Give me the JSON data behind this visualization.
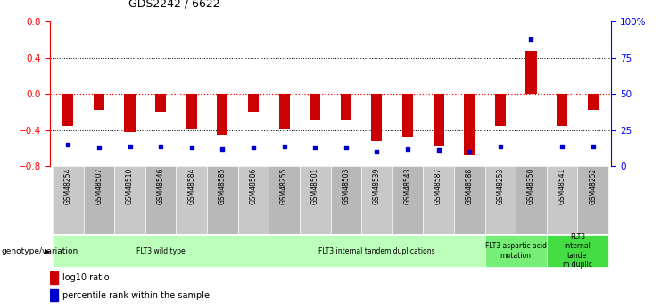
{
  "title": "GDS2242 / 6622",
  "samples": [
    "GSM48254",
    "GSM48507",
    "GSM48510",
    "GSM48546",
    "GSM48584",
    "GSM48585",
    "GSM48586",
    "GSM48255",
    "GSM48501",
    "GSM48503",
    "GSM48539",
    "GSM48543",
    "GSM48587",
    "GSM48588",
    "GSM48253",
    "GSM48350",
    "GSM48541",
    "GSM48252"
  ],
  "log10_ratio": [
    -0.35,
    -0.18,
    -0.42,
    -0.2,
    -0.38,
    -0.45,
    -0.2,
    -0.38,
    -0.28,
    -0.28,
    -0.52,
    -0.47,
    -0.58,
    -0.68,
    -0.35,
    0.48,
    -0.35,
    -0.18
  ],
  "percentile_rank": [
    15,
    13,
    14,
    14,
    13,
    12,
    13,
    14,
    13,
    13,
    10,
    12,
    11,
    10,
    14,
    88,
    14,
    14
  ],
  "groups": [
    {
      "label": "FLT3 wild type",
      "start": 0,
      "end": 7,
      "color": "#bbffbb"
    },
    {
      "label": "FLT3 internal tandem duplications",
      "start": 7,
      "end": 14,
      "color": "#bbffbb"
    },
    {
      "label": "FLT3 aspartic acid\nmutation",
      "start": 14,
      "end": 16,
      "color": "#77ee77"
    },
    {
      "label": "FLT3\ninternal\ntande\nm duplic",
      "start": 16,
      "end": 18,
      "color": "#44dd44"
    }
  ],
  "ylim_left": [
    -0.8,
    0.8
  ],
  "ylim_right": [
    0,
    100
  ],
  "yticks_left": [
    -0.8,
    -0.4,
    0,
    0.4,
    0.8
  ],
  "yticks_right": [
    0,
    25,
    50,
    75,
    100
  ],
  "bar_color": "#cc0000",
  "dot_color": "#0000cc",
  "legend_bar_label": "log10 ratio",
  "legend_dot_label": "percentile rank within the sample",
  "xlabel_label": "genotype/variation",
  "background_color": "#ffffff"
}
